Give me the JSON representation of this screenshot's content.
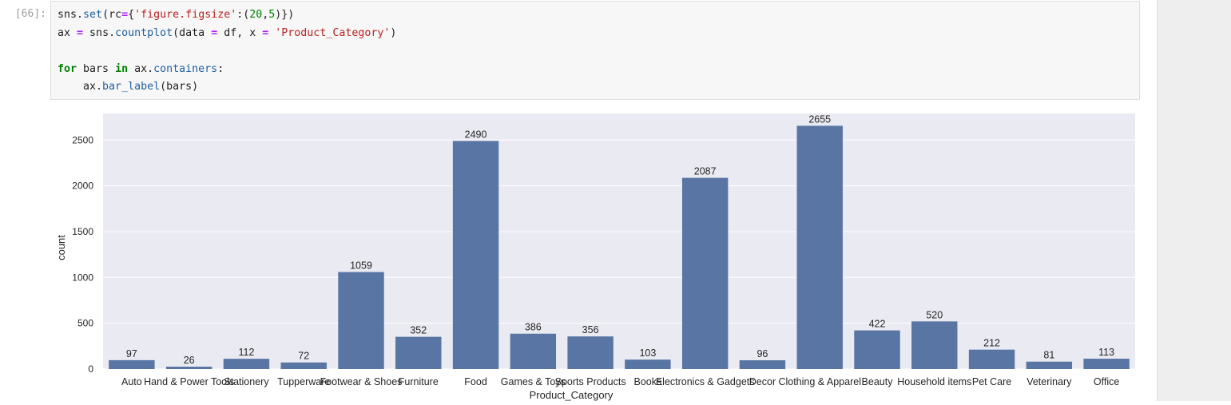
{
  "cell": {
    "prompt": "[66]:",
    "code_lines": [
      [
        {
          "t": "sns",
          "c": ""
        },
        {
          "t": ".",
          "c": ""
        },
        {
          "t": "set",
          "c": "fn"
        },
        {
          "t": "(rc",
          "c": ""
        },
        {
          "t": "=",
          "c": "op"
        },
        {
          "t": "{",
          "c": ""
        },
        {
          "t": "'figure.figsize'",
          "c": "str"
        },
        {
          "t": ":(",
          "c": ""
        },
        {
          "t": "20",
          "c": "num"
        },
        {
          "t": ",",
          "c": ""
        },
        {
          "t": "5",
          "c": "num"
        },
        {
          "t": ")})",
          "c": ""
        }
      ],
      [
        {
          "t": "ax ",
          "c": ""
        },
        {
          "t": "=",
          "c": "op"
        },
        {
          "t": " sns.",
          "c": ""
        },
        {
          "t": "countplot",
          "c": "fn"
        },
        {
          "t": "(data ",
          "c": ""
        },
        {
          "t": "=",
          "c": "op"
        },
        {
          "t": " df, x ",
          "c": ""
        },
        {
          "t": "=",
          "c": "op"
        },
        {
          "t": " ",
          "c": ""
        },
        {
          "t": "'Product_Category'",
          "c": "str"
        },
        {
          "t": ")",
          "c": ""
        }
      ],
      [],
      [
        {
          "t": "for",
          "c": "kw"
        },
        {
          "t": " bars ",
          "c": ""
        },
        {
          "t": "in",
          "c": "kw"
        },
        {
          "t": " ax.",
          "c": ""
        },
        {
          "t": "containers",
          "c": "fn"
        },
        {
          "t": ":",
          "c": ""
        }
      ],
      [
        {
          "t": "    ax.",
          "c": ""
        },
        {
          "t": "bar_label",
          "c": "fn"
        },
        {
          "t": "(bars)",
          "c": ""
        }
      ]
    ]
  },
  "colors": {
    "bar": "#5975a4",
    "plot_bg": "#eaeaf2",
    "grid": "#ffffff",
    "text": "#262626"
  },
  "chart_data": {
    "type": "bar",
    "categories": [
      "Auto",
      "Hand & Power Tools",
      "Stationery",
      "Tupperware",
      "Footwear & Shoes",
      "Furniture",
      "Food",
      "Games & Toys",
      "Sports Products",
      "Books",
      "Electronics & Gadgets",
      "Decor",
      "Clothing & Apparel",
      "Beauty",
      "Household items",
      "Pet Care",
      "Veterinary",
      "Office"
    ],
    "values": [
      97,
      26,
      112,
      72,
      1059,
      352,
      2490,
      386,
      356,
      103,
      2087,
      96,
      2655,
      422,
      520,
      212,
      81,
      113
    ],
    "xlabel": "Product_Category",
    "ylabel": "count",
    "ylim": [
      0,
      2790
    ],
    "yticks": [
      0,
      500,
      1000,
      1500,
      2000,
      2500
    ],
    "grid": true,
    "bar_labels": true
  }
}
